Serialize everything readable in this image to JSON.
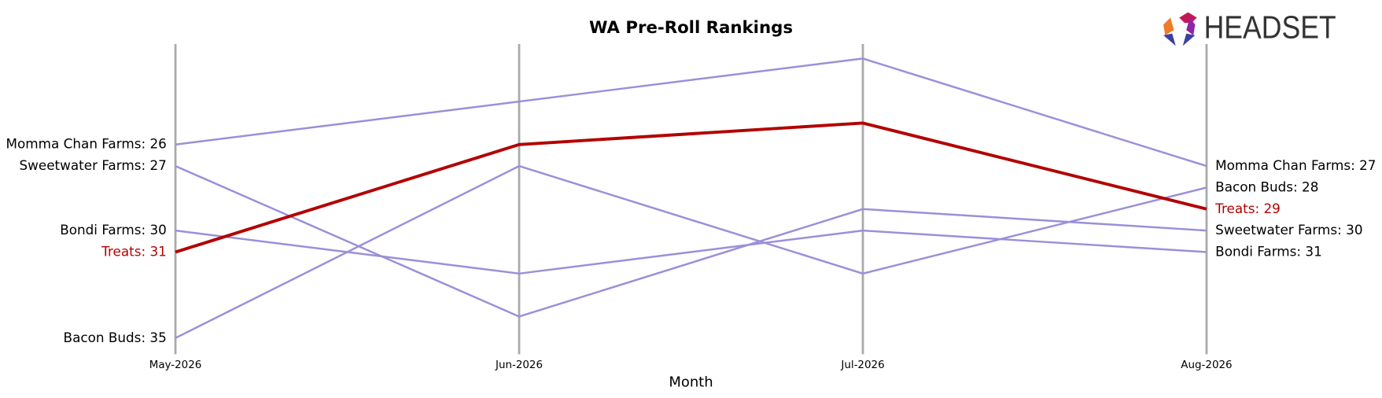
{
  "chart_data": {
    "type": "bump",
    "title": "WA Pre-Roll Rankings",
    "logo": "HEADSET",
    "x_label": "Month",
    "categories": [
      "May-2026",
      "Jun-2026",
      "Jul-2026",
      "Aug-2026"
    ],
    "ylim": [
      36,
      21
    ],
    "series": [
      {
        "name": "Momma Chan Farms",
        "color": "#9b8fd9",
        "label_color": "#000000",
        "values": [
          26,
          24,
          22,
          27
        ],
        "value_labels": [
          "Momma Chan Farms: 26",
          null,
          null,
          "Momma Chan Farms: 27"
        ]
      },
      {
        "name": "Sweetwater Farms",
        "color": "#9b8fd9",
        "label_color": "#000000",
        "values": [
          27,
          34,
          29,
          30
        ],
        "value_labels": [
          "Sweetwater Farms: 27",
          null,
          null,
          "Sweetwater Farms: 30"
        ]
      },
      {
        "name": "Bondi Farms",
        "color": "#9b8fd9",
        "label_color": "#000000",
        "values": [
          30,
          32,
          30,
          31
        ],
        "value_labels": [
          "Bondi Farms: 30",
          null,
          null,
          "Bondi Farms: 31"
        ]
      },
      {
        "name": "Bacon Buds",
        "color": "#9b8fd9",
        "label_color": "#000000",
        "values": [
          35,
          27,
          32,
          28
        ],
        "value_labels": [
          "Bacon Buds: 35",
          null,
          null,
          "Bacon Buds: 28"
        ]
      },
      {
        "name": "Treats",
        "color": "#b30000",
        "label_color": "#b30000",
        "values": [
          31,
          26,
          25,
          29
        ],
        "value_labels": [
          "Treats: 31",
          null,
          null,
          "Treats: 29"
        ]
      }
    ]
  }
}
